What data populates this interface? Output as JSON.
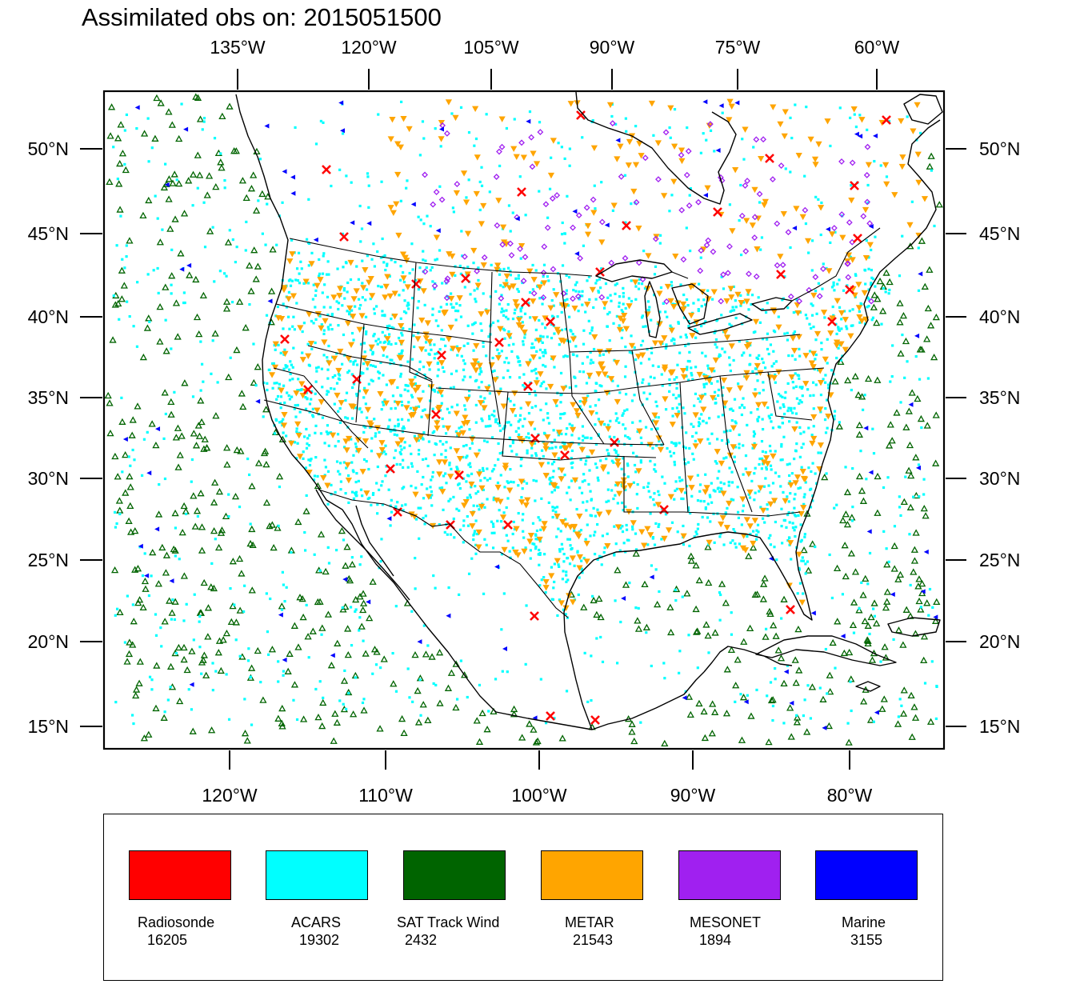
{
  "title": "Assimilated obs on: 2015051500",
  "map": {
    "type": "observation-scatter-map",
    "projection": "lambert-conformal",
    "region": "North America (CONUS, Mexico, adjacent oceans)",
    "top_lon_labels": [
      "135°W",
      "120°W",
      "105°W",
      "90°W",
      "75°W",
      "60°W"
    ],
    "bottom_lon_labels": [
      "120°W",
      "110°W",
      "100°W",
      "90°W",
      "80°W"
    ],
    "lat_labels": [
      "50°N",
      "45°N",
      "40°N",
      "35°N",
      "30°N",
      "25°N",
      "20°N",
      "15°N"
    ]
  },
  "legend": [
    {
      "name": "Radiosonde",
      "count": "16205",
      "color": "#ff0000",
      "marker": "x-cross"
    },
    {
      "name": "ACARS",
      "count": "19302",
      "color": "#00ffff",
      "marker": "square-dot"
    },
    {
      "name": "SAT Track Wind",
      "count": "2432",
      "color": "#006400",
      "marker": "hollow-triangle-up"
    },
    {
      "name": "METAR",
      "count": "21543",
      "color": "#ffa500",
      "marker": "filled-triangle-down"
    },
    {
      "name": "MESONET",
      "count": "1894",
      "color": "#a020f0",
      "marker": "hollow-diamond"
    },
    {
      "name": "Marine",
      "count": "3155",
      "color": "#0000ff",
      "marker": "filled-triangle-left"
    }
  ]
}
